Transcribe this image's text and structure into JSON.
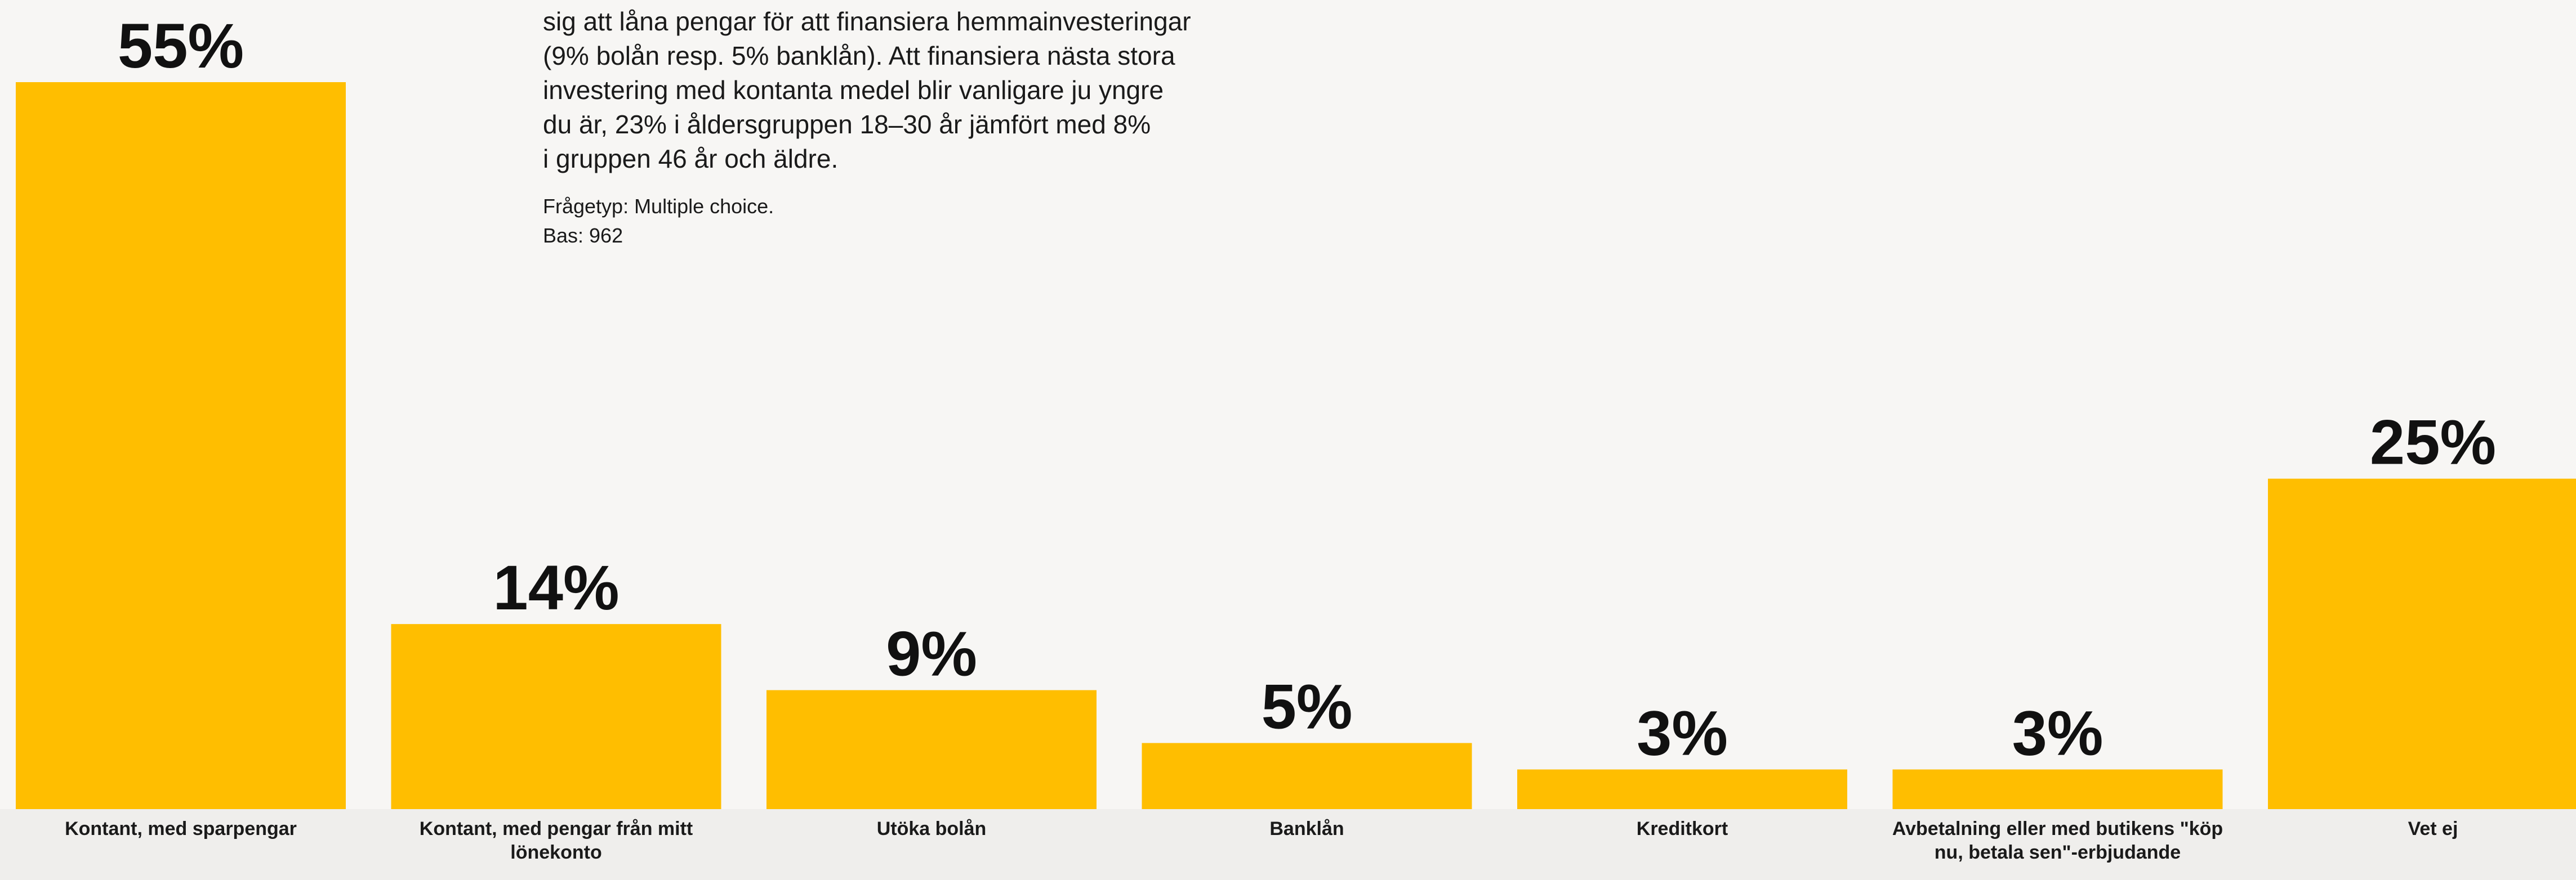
{
  "description": {
    "lines": [
      "sig att låna pengar för att finansiera hemmainvesteringar",
      "(9% bolån resp. 5% banklån). Att finansiera nästa stora",
      "investering med kontanta medel blir vanligare ju yngre",
      "du är, 23% i åldersgruppen 18–30 år jämfört med 8%",
      "i gruppen 46 år och äldre."
    ],
    "question_type": "Frågetyp: Multiple choice.",
    "base": "Bas: 962"
  },
  "chart_data": {
    "type": "bar",
    "categories": [
      [
        "Kontant, med sparpengar"
      ],
      [
        "Kontant, med pengar från mitt",
        "lönekonto"
      ],
      [
        "Utöka bolån"
      ],
      [
        "Banklån"
      ],
      [
        "Kreditkort"
      ],
      [
        "Avbetalning eller med butikens \"köp",
        "nu, betala sen\"-erbjudande"
      ],
      [
        "Vet ej"
      ]
    ],
    "values": [
      55,
      14,
      9,
      5,
      3,
      3,
      25
    ],
    "value_labels": [
      "55%",
      "14%",
      "9%",
      "5%",
      "3%",
      "3%",
      "25%"
    ],
    "unit": "%",
    "bar_color": "#ffbe00",
    "label_band_color": "#efeeec",
    "background": "#f7f6f4",
    "ylim": [
      0,
      55
    ]
  }
}
